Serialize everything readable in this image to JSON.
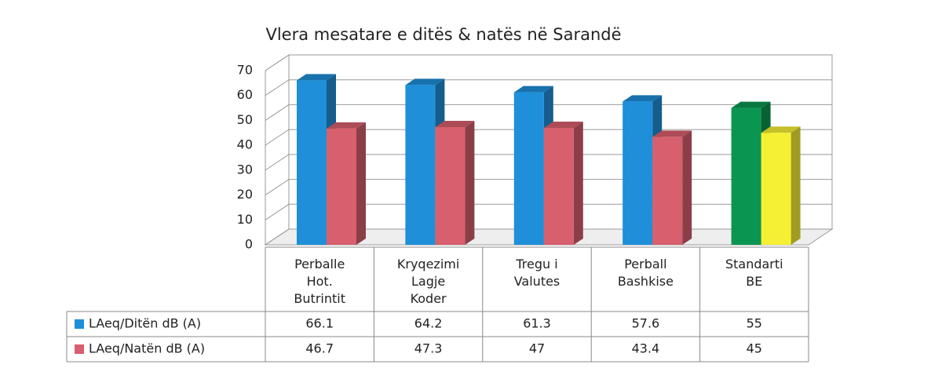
{
  "chart_data": {
    "type": "bar3d",
    "title": "Vlera mesatare e ditës & natës në Sarandë",
    "categories": [
      "Perballe\nHot.\nButrintit",
      "Kryqezimi\nLagje\nKoder",
      "Tregu i\nValutes",
      "Perball\nBashkise",
      "Standarti\nBE"
    ],
    "series": [
      {
        "name": "LAeq/Ditën dB (A)",
        "color": "#1e8fd8",
        "colors": [
          "#1e8fd8",
          "#1e8fd8",
          "#1e8fd8",
          "#1e8fd8",
          "#0a9650"
        ],
        "values": [
          66.1,
          64.2,
          61.3,
          57.6,
          55
        ]
      },
      {
        "name": "LAeq/Natën dB (A)",
        "color": "#d85f6d",
        "colors": [
          "#d85f6d",
          "#d85f6d",
          "#d85f6d",
          "#d85f6d",
          "#f6f034"
        ],
        "values": [
          46.7,
          47.3,
          47,
          43.4,
          45
        ]
      }
    ],
    "ylim": [
      0,
      70
    ],
    "yticks": [
      0,
      10,
      20,
      30,
      40,
      50,
      60,
      70
    ],
    "grid": true
  }
}
